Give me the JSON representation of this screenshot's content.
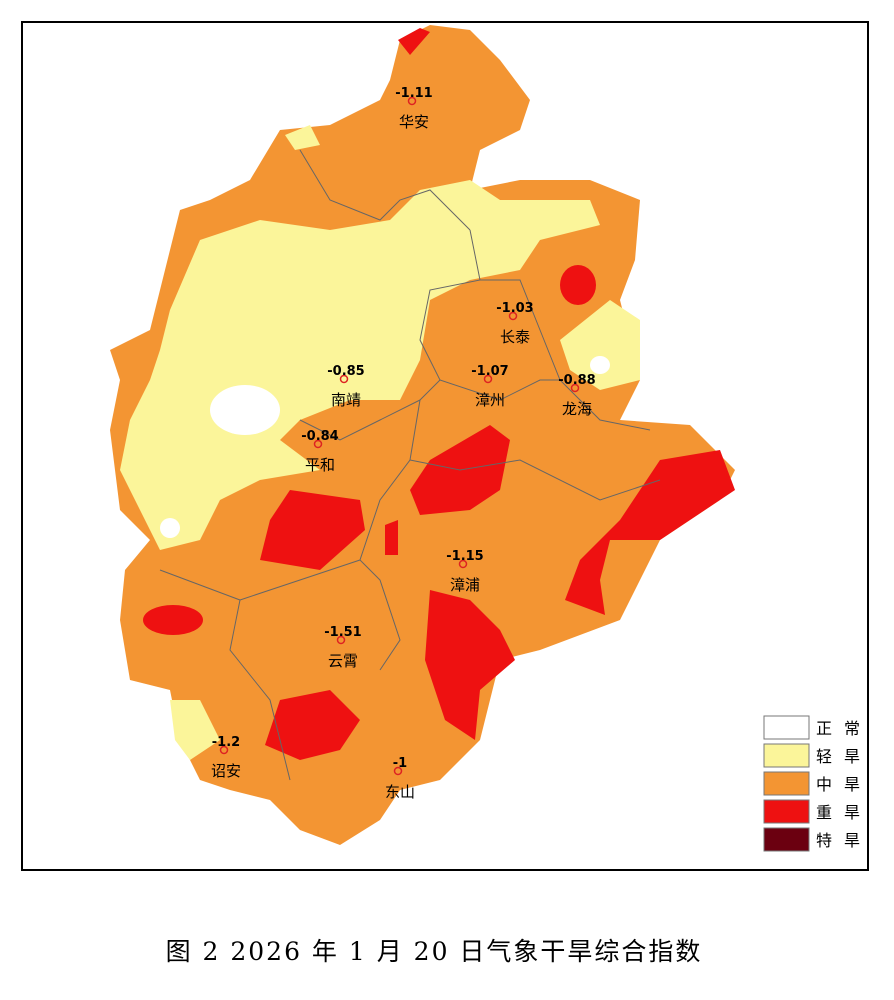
{
  "map": {
    "stations": [
      {
        "name": "华安",
        "value": -1.11
      },
      {
        "name": "长泰",
        "value": -1.03
      },
      {
        "name": "南靖",
        "value": -0.85
      },
      {
        "name": "漳州",
        "value": -1.07
      },
      {
        "name": "龙海",
        "value": -0.88
      },
      {
        "name": "平和",
        "value": -0.84
      },
      {
        "name": "漳浦",
        "value": -1.15
      },
      {
        "name": "云霄",
        "value": -1.51
      },
      {
        "name": "诏安",
        "value": -1.2
      },
      {
        "name": "东山",
        "value": -1
      }
    ],
    "legend": [
      {
        "label": "正常",
        "color": "#ffffff"
      },
      {
        "label": "轻旱",
        "color": "#fbf59a"
      },
      {
        "label": "中旱",
        "color": "#f39533"
      },
      {
        "label": "重旱",
        "color": "#ee1111"
      },
      {
        "label": "特旱",
        "color": "#6b0010"
      }
    ]
  },
  "caption": "图 2 2026 年 1 月 20 日气象干旱综合指数"
}
